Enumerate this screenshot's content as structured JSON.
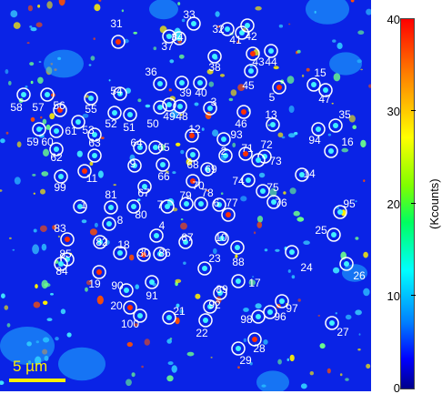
{
  "image": {
    "scale_bar_label": "5 µm",
    "marker_color": "#ffffff",
    "labels": [
      {
        "id": "31"
      },
      {
        "id": "33"
      },
      {
        "id": "32"
      },
      {
        "id": "41"
      },
      {
        "id": "42"
      },
      {
        "id": "34"
      },
      {
        "id": "37"
      },
      {
        "id": "43"
      },
      {
        "id": "44"
      },
      {
        "id": "38"
      },
      {
        "id": "36"
      },
      {
        "id": "15"
      },
      {
        "id": "47"
      },
      {
        "id": "45"
      },
      {
        "id": "5"
      },
      {
        "id": "54"
      },
      {
        "id": "39"
      },
      {
        "id": "40"
      },
      {
        "id": "3"
      },
      {
        "id": "58"
      },
      {
        "id": "57"
      },
      {
        "id": "56"
      },
      {
        "id": "55"
      },
      {
        "id": "52"
      },
      {
        "id": "51"
      },
      {
        "id": "50"
      },
      {
        "id": "49"
      },
      {
        "id": "48"
      },
      {
        "id": "46"
      },
      {
        "id": "13"
      },
      {
        "id": "35"
      },
      {
        "id": "59"
      },
      {
        "id": "60"
      },
      {
        "id": "61"
      },
      {
        "id": "53"
      },
      {
        "id": "12"
      },
      {
        "id": "93"
      },
      {
        "id": "94"
      },
      {
        "id": "16"
      },
      {
        "id": "63"
      },
      {
        "id": "64"
      },
      {
        "id": "65"
      },
      {
        "id": "71"
      },
      {
        "id": "72"
      },
      {
        "id": "62"
      },
      {
        "id": "9"
      },
      {
        "id": "68"
      },
      {
        "id": "69"
      },
      {
        "id": "73"
      },
      {
        "id": "11"
      },
      {
        "id": "66"
      },
      {
        "id": "2"
      },
      {
        "id": "14"
      },
      {
        "id": "99"
      },
      {
        "id": "74"
      },
      {
        "id": "75"
      },
      {
        "id": "70"
      },
      {
        "id": "81"
      },
      {
        "id": "67"
      },
      {
        "id": "7"
      },
      {
        "id": "79"
      },
      {
        "id": "78"
      },
      {
        "id": "6"
      },
      {
        "id": "77"
      },
      {
        "id": "76"
      },
      {
        "id": "95"
      },
      {
        "id": "1"
      },
      {
        "id": "80"
      },
      {
        "id": "8"
      },
      {
        "id": "4"
      },
      {
        "id": "83"
      },
      {
        "id": "25"
      },
      {
        "id": "82"
      },
      {
        "id": "10"
      },
      {
        "id": "87"
      },
      {
        "id": "18"
      },
      {
        "id": "85"
      },
      {
        "id": "30"
      },
      {
        "id": "86"
      },
      {
        "id": "88"
      },
      {
        "id": "23"
      },
      {
        "id": "84"
      },
      {
        "id": "26"
      },
      {
        "id": "24"
      },
      {
        "id": "19"
      },
      {
        "id": "90"
      },
      {
        "id": "17"
      },
      {
        "id": "89"
      },
      {
        "id": "91"
      },
      {
        "id": "92"
      },
      {
        "id": "97"
      },
      {
        "id": "20"
      },
      {
        "id": "98"
      },
      {
        "id": "96"
      },
      {
        "id": "21"
      },
      {
        "id": "100"
      },
      {
        "id": "27"
      },
      {
        "id": "22"
      },
      {
        "id": "28"
      },
      {
        "id": "29"
      }
    ]
  },
  "colorbar": {
    "label": "(Kcounts)",
    "ticks": [
      "40",
      "30",
      "20",
      "10",
      "0"
    ],
    "min": 0,
    "max": 40,
    "colors": [
      "#00008b",
      "#0000ff",
      "#00ffff",
      "#80ff00",
      "#ffff00",
      "#ff0000"
    ]
  }
}
